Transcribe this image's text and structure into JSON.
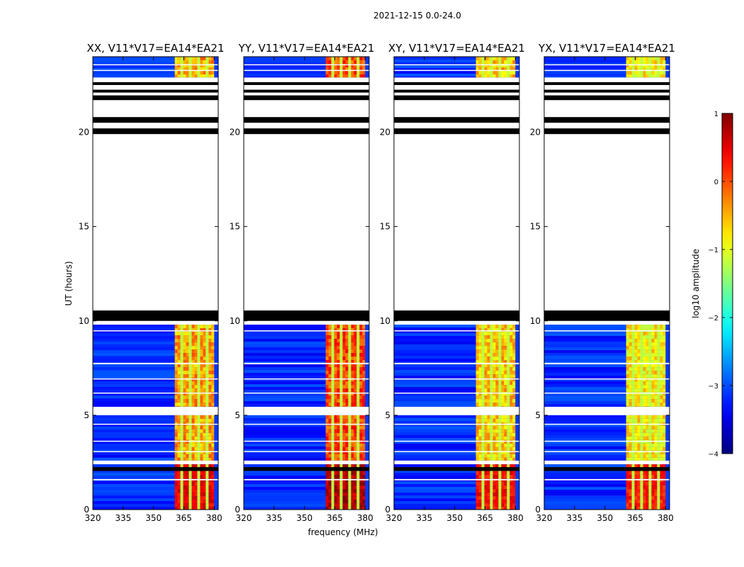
{
  "chart_data": {
    "type": "heatmap",
    "title": "2021-12-15 0.0-24.0",
    "xlabel": "frequency (MHz)",
    "ylabel": "UT (hours)",
    "xlim": [
      320,
      382
    ],
    "ylim": [
      0,
      24
    ],
    "xticks": [
      320,
      335,
      350,
      365,
      380
    ],
    "yticks": [
      0,
      5,
      10,
      15,
      20
    ],
    "panels": [
      {
        "title": "XX, V11*V17=EA14*EA21",
        "band_peak": -0.2,
        "rfi_peak": 0.5
      },
      {
        "title": "YY, V11*V17=EA14*EA21",
        "band_peak": 0.25,
        "rfi_peak": 0.8
      },
      {
        "title": "XY, V11*V17=EA14*EA21",
        "band_peak": -0.4,
        "rfi_peak": 0.4
      },
      {
        "title": "YX, V11*V17=EA14*EA21",
        "band_peak": -0.6,
        "rfi_peak": 0.3
      }
    ],
    "data_segments_hours": [
      [
        0,
        2.4
      ],
      [
        2.6,
        5.0
      ],
      [
        5.45,
        9.8
      ],
      [
        22.9,
        24.0
      ]
    ],
    "flagged_black_hours": [
      [
        2.05,
        2.25
      ],
      [
        10.0,
        10.55
      ],
      [
        19.9,
        20.2
      ],
      [
        20.5,
        20.8
      ],
      [
        21.7,
        21.95
      ],
      [
        22.1,
        22.25
      ],
      [
        22.5,
        22.65
      ]
    ],
    "bright_band_mhz": [
      360.5,
      380
    ],
    "colorbar": {
      "label": "log10 amplitude",
      "ticks": [
        1,
        0,
        -1,
        -2,
        -3,
        -4
      ],
      "tick_labels": [
        "1",
        "0",
        "−1",
        "−2",
        "−3",
        "−4"
      ],
      "range": [
        -4,
        1
      ]
    }
  }
}
